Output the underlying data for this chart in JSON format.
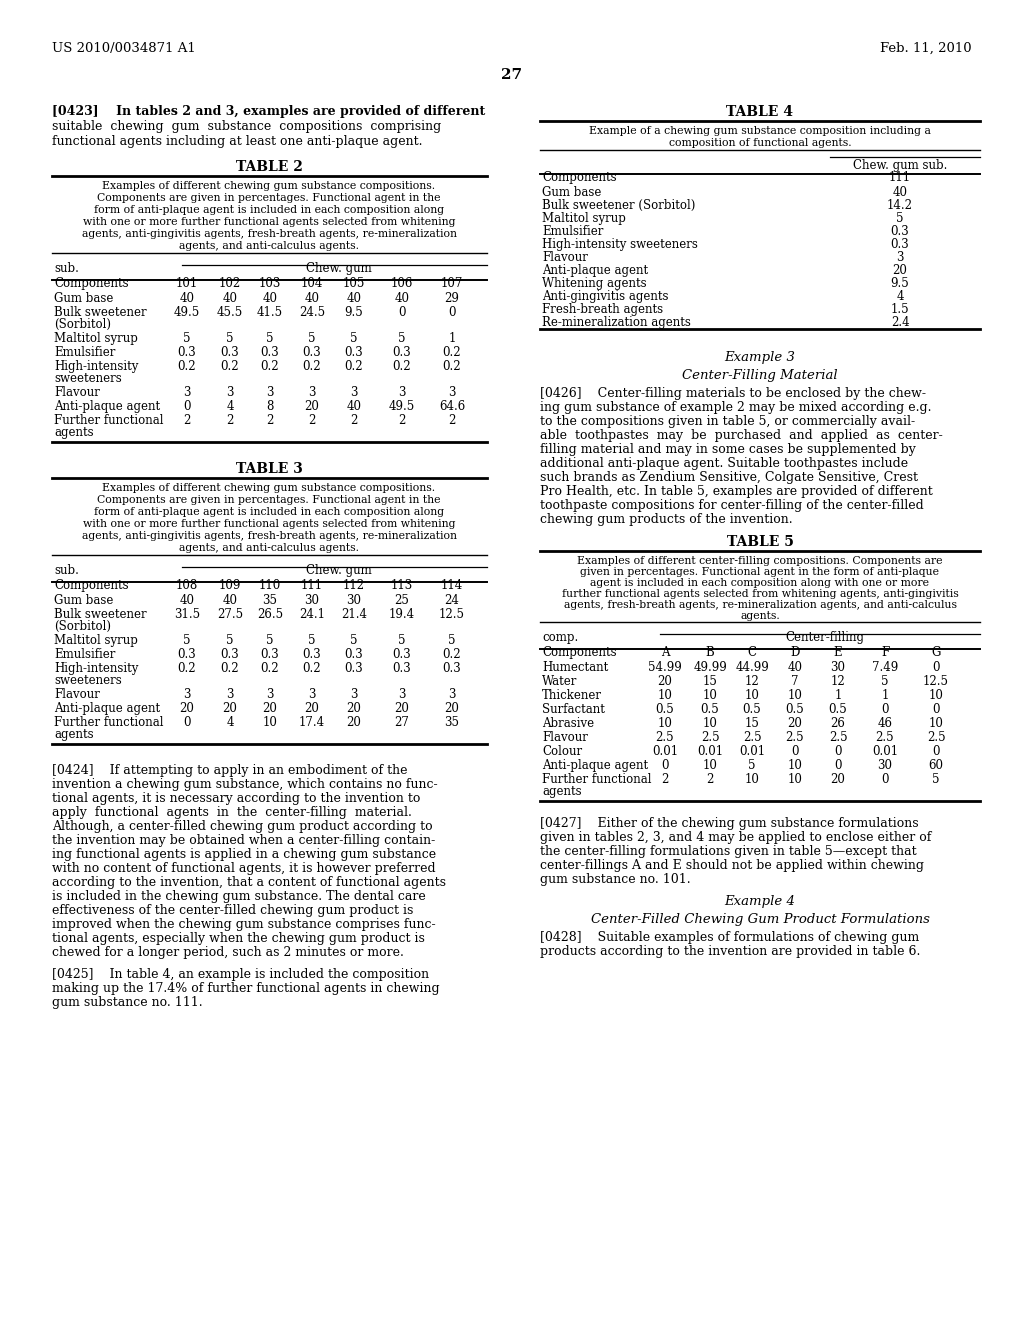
{
  "page_header_left": "US 2010/0034871 A1",
  "page_header_right": "Feb. 11, 2010",
  "page_number": "27",
  "background_color": "#ffffff",
  "table2_title": "TABLE 2",
  "table2_cols": [
    "Components",
    "101",
    "102",
    "103",
    "104",
    "105",
    "106",
    "107"
  ],
  "table2_rows": [
    [
      "Gum base",
      "40",
      "40",
      "40",
      "40",
      "40",
      "40",
      "29"
    ],
    [
      "Bulk sweetener\n(Sorbitol)",
      "49.5",
      "45.5",
      "41.5",
      "24.5",
      "9.5",
      "0",
      "0"
    ],
    [
      "Maltitol syrup",
      "5",
      "5",
      "5",
      "5",
      "5",
      "5",
      "1"
    ],
    [
      "Emulsifier",
      "0.3",
      "0.3",
      "0.3",
      "0.3",
      "0.3",
      "0.3",
      "0.2"
    ],
    [
      "High-intensity\nsweeteners",
      "0.2",
      "0.2",
      "0.2",
      "0.2",
      "0.2",
      "0.2",
      "0.2"
    ],
    [
      "Flavour",
      "3",
      "3",
      "3",
      "3",
      "3",
      "3",
      "3"
    ],
    [
      "Anti-plaque agent",
      "0",
      "4",
      "8",
      "20",
      "40",
      "49.5",
      "64.6"
    ],
    [
      "Further functional\nagents",
      "2",
      "2",
      "2",
      "2",
      "2",
      "2",
      "2"
    ]
  ],
  "table3_title": "TABLE 3",
  "table3_cols": [
    "Components",
    "108",
    "109",
    "110",
    "111",
    "112",
    "113",
    "114"
  ],
  "table3_rows": [
    [
      "Gum base",
      "40",
      "40",
      "35",
      "30",
      "30",
      "25",
      "24"
    ],
    [
      "Bulk sweetener\n(Sorbitol)",
      "31.5",
      "27.5",
      "26.5",
      "24.1",
      "21.4",
      "19.4",
      "12.5"
    ],
    [
      "Maltitol syrup",
      "5",
      "5",
      "5",
      "5",
      "5",
      "5",
      "5"
    ],
    [
      "Emulsifier",
      "0.3",
      "0.3",
      "0.3",
      "0.3",
      "0.3",
      "0.3",
      "0.2"
    ],
    [
      "High-intensity\nsweeteners",
      "0.2",
      "0.2",
      "0.2",
      "0.2",
      "0.3",
      "0.3",
      "0.3"
    ],
    [
      "Flavour",
      "3",
      "3",
      "3",
      "3",
      "3",
      "3",
      "3"
    ],
    [
      "Anti-plaque agent",
      "20",
      "20",
      "20",
      "20",
      "20",
      "20",
      "20"
    ],
    [
      "Further functional\nagents",
      "0",
      "4",
      "10",
      "17.4",
      "20",
      "27",
      "35"
    ]
  ],
  "table4_title": "TABLE 4",
  "table4_rows": [
    [
      "Gum base",
      "40"
    ],
    [
      "Bulk sweetener (Sorbitol)",
      "14.2"
    ],
    [
      "Maltitol syrup",
      "5"
    ],
    [
      "Emulsifier",
      "0.3"
    ],
    [
      "High-intensity sweeteners",
      "0.3"
    ],
    [
      "Flavour",
      "3"
    ],
    [
      "Anti-plaque agent",
      "20"
    ],
    [
      "Whitening agents",
      "9.5"
    ],
    [
      "Anti-gingivitis agents",
      "4"
    ],
    [
      "Fresh-breath agents",
      "1.5"
    ],
    [
      "Re-mineralization agents",
      "2.4"
    ]
  ],
  "table5_title": "TABLE 5",
  "table5_cols": [
    "Components",
    "A",
    "B",
    "C",
    "D",
    "E",
    "F",
    "G"
  ],
  "table5_rows": [
    [
      "Humectant",
      "54.99",
      "49.99",
      "44.99",
      "40",
      "30",
      "7.49",
      "0"
    ],
    [
      "Water",
      "20",
      "15",
      "12",
      "7",
      "12",
      "5",
      "12.5"
    ],
    [
      "Thickener",
      "10",
      "10",
      "10",
      "10",
      "1",
      "1",
      "10"
    ],
    [
      "Surfactant",
      "0.5",
      "0.5",
      "0.5",
      "0.5",
      "0.5",
      "0",
      "0"
    ],
    [
      "Abrasive",
      "10",
      "10",
      "15",
      "20",
      "26",
      "46",
      "10"
    ],
    [
      "Flavour",
      "2.5",
      "2.5",
      "2.5",
      "2.5",
      "2.5",
      "2.5",
      "2.5"
    ],
    [
      "Colour",
      "0.01",
      "0.01",
      "0.01",
      "0",
      "0",
      "0.01",
      "0"
    ],
    [
      "Anti-plaque agent",
      "0",
      "10",
      "5",
      "10",
      "0",
      "30",
      "60"
    ],
    [
      "Further functional\nagents",
      "2",
      "2",
      "10",
      "10",
      "20",
      "0",
      "5"
    ]
  ]
}
